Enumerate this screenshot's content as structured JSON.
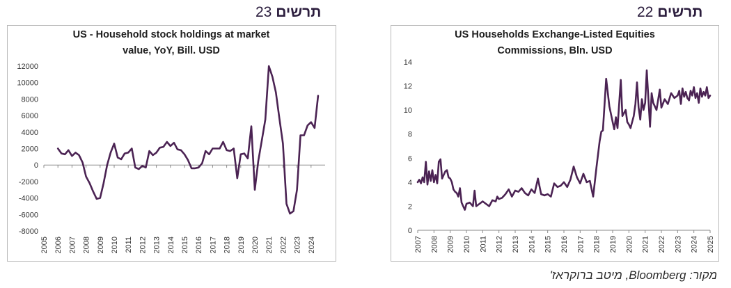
{
  "left_figure": {
    "label": "תרשים",
    "number": "23"
  },
  "right_figure": {
    "label": "תרשים",
    "number": "22"
  },
  "source_note": "מקור: Bloomberg, מיטב ברוקראז'",
  "chart_data": [
    {
      "type": "line",
      "title_lines": [
        "US -  Household stock holdings at market",
        "value, YoY, Bill. USD"
      ],
      "xlabel": "",
      "ylabel": "",
      "ylim": [
        -8000,
        12000
      ],
      "yticks": [
        -8000,
        -6000,
        -4000,
        -2000,
        0,
        2000,
        4000,
        6000,
        8000,
        10000,
        12000
      ],
      "xlim": [
        2005,
        2025
      ],
      "xticks": [
        2005,
        2006,
        2007,
        2008,
        2009,
        2010,
        2011,
        2012,
        2013,
        2014,
        2015,
        2016,
        2017,
        2018,
        2019,
        2020,
        2021,
        2022,
        2023,
        2024
      ],
      "grid": false,
      "line_color": "#4b2353",
      "series": [
        {
          "x": [
            2006.0,
            2006.25,
            2006.5,
            2006.75,
            2007.0,
            2007.25,
            2007.5,
            2007.75,
            2008.0,
            2008.25,
            2008.5,
            2008.75,
            2009.0,
            2009.25,
            2009.5,
            2009.75,
            2010.0,
            2010.25,
            2010.5,
            2010.75,
            2011.0,
            2011.25,
            2011.5,
            2011.75,
            2012.0,
            2012.25,
            2012.5,
            2012.75,
            2013.0,
            2013.25,
            2013.5,
            2013.75,
            2014.0,
            2014.25,
            2014.5,
            2014.75,
            2015.0,
            2015.25,
            2015.5,
            2015.75,
            2016.0,
            2016.25,
            2016.5,
            2016.75,
            2017.0,
            2017.25,
            2017.5,
            2017.75,
            2018.0,
            2018.25,
            2018.5,
            2018.75,
            2019.0,
            2019.25,
            2019.5,
            2019.75,
            2020.0,
            2020.25,
            2020.5,
            2020.75,
            2021.0,
            2021.25,
            2021.5,
            2021.75,
            2022.0,
            2022.25,
            2022.5,
            2022.75,
            2023.0,
            2023.25,
            2023.5,
            2023.75,
            2024.0,
            2024.25,
            2024.5
          ],
          "values": [
            2000,
            1400,
            1300,
            1800,
            1100,
            1500,
            1200,
            300,
            -1400,
            -2200,
            -3200,
            -4100,
            -4000,
            -2200,
            0,
            1500,
            2600,
            900,
            700,
            1400,
            1500,
            2000,
            -300,
            -500,
            -100,
            -300,
            1700,
            1200,
            1500,
            2100,
            2200,
            2800,
            2300,
            2700,
            1900,
            1800,
            1300,
            600,
            -400,
            -400,
            -300,
            200,
            1700,
            1300,
            2000,
            2000,
            2000,
            2800,
            1800,
            1700,
            2000,
            -1600,
            1300,
            1400,
            800,
            4700,
            -3000,
            500,
            3000,
            5500,
            12000,
            10700,
            8800,
            5600,
            2600,
            -4700,
            -5900,
            -5600,
            -3000,
            3600,
            3600,
            4800,
            5200,
            4500,
            8400
          ]
        }
      ]
    },
    {
      "type": "line",
      "title_lines": [
        "US Households Exchange-Listed Equities",
        "Commissions, Bln. USD"
      ],
      "xlabel": "",
      "ylabel": "",
      "ylim": [
        0,
        14
      ],
      "yticks": [
        0,
        2,
        4,
        6,
        8,
        10,
        12,
        14
      ],
      "xlim": [
        2007,
        2025
      ],
      "xticks": [
        2007,
        2008,
        2009,
        2010,
        2011,
        2012,
        2013,
        2014,
        2015,
        2016,
        2017,
        2018,
        2019,
        2020,
        2021,
        2022,
        2023,
        2024,
        2025
      ],
      "grid": false,
      "line_color": "#4b2353",
      "series": [
        {
          "x": [
            2007.0,
            2007.1,
            2007.2,
            2007.3,
            2007.4,
            2007.5,
            2007.6,
            2007.7,
            2007.8,
            2007.9,
            2008.0,
            2008.1,
            2008.2,
            2008.3,
            2008.4,
            2008.5,
            2008.6,
            2008.7,
            2008.8,
            2008.9,
            2009.0,
            2009.1,
            2009.2,
            2009.3,
            2009.4,
            2009.5,
            2009.6,
            2009.7,
            2009.8,
            2009.9,
            2010.0,
            2010.2,
            2010.4,
            2010.5,
            2010.6,
            2010.8,
            2011.0,
            2011.2,
            2011.4,
            2011.6,
            2011.8,
            2011.9,
            2012.0,
            2012.2,
            2012.4,
            2012.6,
            2012.8,
            2013.0,
            2013.2,
            2013.4,
            2013.6,
            2013.8,
            2014.0,
            2014.2,
            2014.4,
            2014.6,
            2014.8,
            2015.0,
            2015.2,
            2015.4,
            2015.6,
            2015.8,
            2016.0,
            2016.2,
            2016.4,
            2016.6,
            2016.8,
            2017.0,
            2017.2,
            2017.4,
            2017.6,
            2017.8,
            2018.0,
            2018.2,
            2018.3,
            2018.4,
            2018.6,
            2018.8,
            2019.0,
            2019.1,
            2019.2,
            2019.3,
            2019.5,
            2019.6,
            2019.8,
            2019.9,
            2020.0,
            2020.1,
            2020.2,
            2020.3,
            2020.4,
            2020.5,
            2020.6,
            2020.7,
            2020.8,
            2020.9,
            2021.0,
            2021.1,
            2021.2,
            2021.3,
            2021.4,
            2021.5,
            2021.7,
            2021.9,
            2022.0,
            2022.2,
            2022.4,
            2022.6,
            2022.8,
            2023.0,
            2023.1,
            2023.2,
            2023.3,
            2023.4,
            2023.5,
            2023.6,
            2023.7,
            2023.8,
            2023.9,
            2024.0,
            2024.1,
            2024.2,
            2024.3,
            2024.4,
            2024.5,
            2024.6,
            2024.7,
            2024.8,
            2024.9,
            2025.0
          ],
          "values": [
            4.0,
            4.2,
            3.9,
            4.4,
            4.0,
            5.7,
            3.8,
            4.9,
            4.1,
            5.0,
            4.0,
            4.6,
            3.9,
            5.7,
            5.9,
            4.3,
            4.6,
            4.9,
            5.0,
            4.4,
            4.3,
            4.0,
            3.4,
            3.2,
            3.1,
            2.8,
            3.5,
            2.3,
            2.0,
            1.7,
            2.2,
            2.3,
            2.0,
            3.3,
            2.0,
            2.2,
            2.4,
            2.2,
            2.0,
            2.5,
            2.4,
            2.8,
            2.6,
            2.7,
            3.0,
            3.4,
            2.8,
            3.3,
            3.2,
            3.5,
            3.1,
            2.9,
            3.4,
            3.1,
            4.3,
            3.0,
            2.9,
            3.0,
            2.8,
            3.9,
            3.6,
            3.7,
            4.0,
            3.6,
            4.2,
            5.3,
            4.4,
            3.9,
            4.7,
            4.0,
            4.1,
            2.8,
            5.2,
            7.4,
            8.2,
            8.3,
            12.6,
            10.3,
            9.0,
            8.4,
            9.4,
            8.5,
            12.5,
            9.5,
            10.0,
            9.0,
            8.8,
            8.5,
            9.0,
            9.5,
            10.5,
            12.3,
            10.2,
            9.2,
            10.9,
            10.0,
            10.6,
            13.3,
            11.0,
            8.6,
            11.4,
            10.6,
            10.0,
            11.7,
            10.2,
            10.9,
            10.5,
            11.4,
            11.0,
            11.2,
            11.6,
            10.5,
            11.8,
            11.1,
            11.5,
            11.0,
            10.8,
            11.6,
            11.2,
            11.9,
            11.0,
            11.4,
            10.6,
            11.8,
            11.1,
            11.5,
            11.2,
            11.9,
            11.0,
            11.2
          ]
        }
      ]
    }
  ]
}
